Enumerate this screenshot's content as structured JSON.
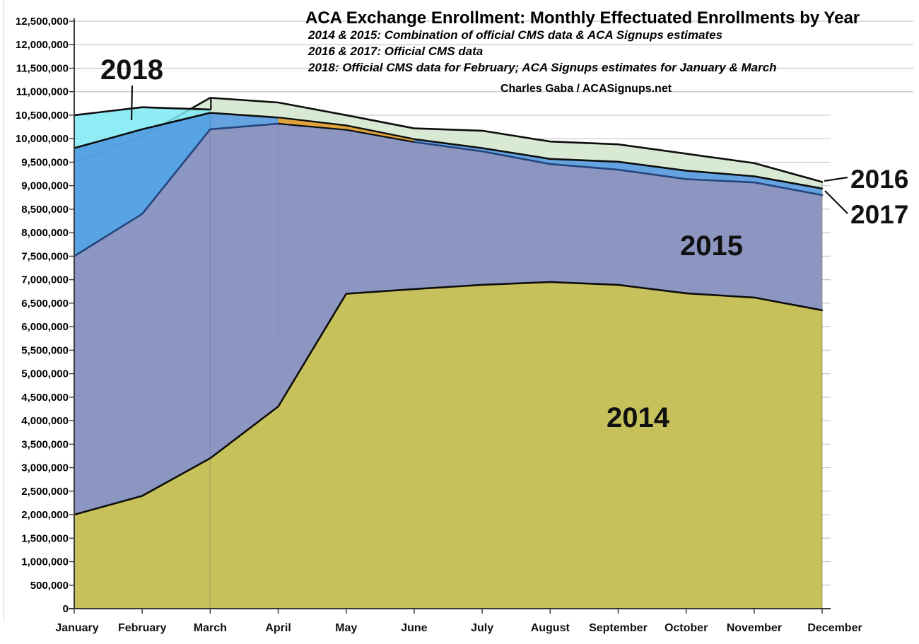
{
  "page": {
    "background": "#ffffff"
  },
  "chart_data": {
    "type": "area",
    "title": "ACA Exchange Enrollment: Monthly Effectuated Enrollments by Year",
    "subtitle_lines": [
      "2014 & 2015: Combination of  official CMS data & ACA Signups estimates",
      "2016 & 2017: Official CMS data",
      "2018: Official CMS data for February; ACA Signups estimates for January & March"
    ],
    "attribution": "Charles Gaba / ACASignups.net",
    "months": [
      "January",
      "February",
      "March",
      "April",
      "May",
      "June",
      "July",
      "August",
      "September",
      "October",
      "November",
      "December"
    ],
    "ylim": [
      0,
      12500000
    ],
    "ytick_step": 500000,
    "grid": "horizontal",
    "legend_position": "labels-on-chart",
    "axis_color": "#3a3a3a",
    "gridline_color": "#c7c7c7",
    "series": [
      {
        "name": "2014",
        "color": "#cbc454",
        "stroke": "#0d0d0d",
        "values": [
          2000000,
          2400000,
          3200000,
          4300000,
          6700000,
          6800000,
          6890000,
          6950000,
          6890000,
          6710000,
          6620000,
          6350000
        ]
      },
      {
        "name": "2015",
        "color": "#9494bc",
        "stroke": "#24447c",
        "values": [
          7500000,
          8400000,
          10200000,
          10320000,
          10190000,
          9930000,
          9730000,
          9460000,
          9340000,
          9140000,
          9070000,
          8800000
        ]
      },
      {
        "name": "2016",
        "color": "#d6e8d0",
        "stroke": "#0d0d0d",
        "values": [
          9500000,
          10050000,
          10870000,
          10770000,
          10500000,
          10220000,
          10170000,
          9940000,
          9880000,
          9680000,
          9480000,
          9080000
        ]
      },
      {
        "name": "2017",
        "color": "#4f97e0",
        "stroke": "#0d0d0d",
        "values": [
          9800000,
          10200000,
          10550000,
          10450000,
          10280000,
          9990000,
          9800000,
          9570000,
          9510000,
          9320000,
          9200000,
          8940000
        ]
      },
      {
        "name": "2018",
        "color": "#7de9f3",
        "stroke": "#0d0d0d",
        "values": [
          10500000,
          10670000,
          10620000
        ]
      }
    ],
    "annotations": {
      "orange_band": {
        "note": "thin unlabeled orange band visible between the 2015 and 2017 curves from April through June",
        "color": "#e0a33c",
        "month_span": [
          "April",
          "June"
        ]
      }
    }
  }
}
